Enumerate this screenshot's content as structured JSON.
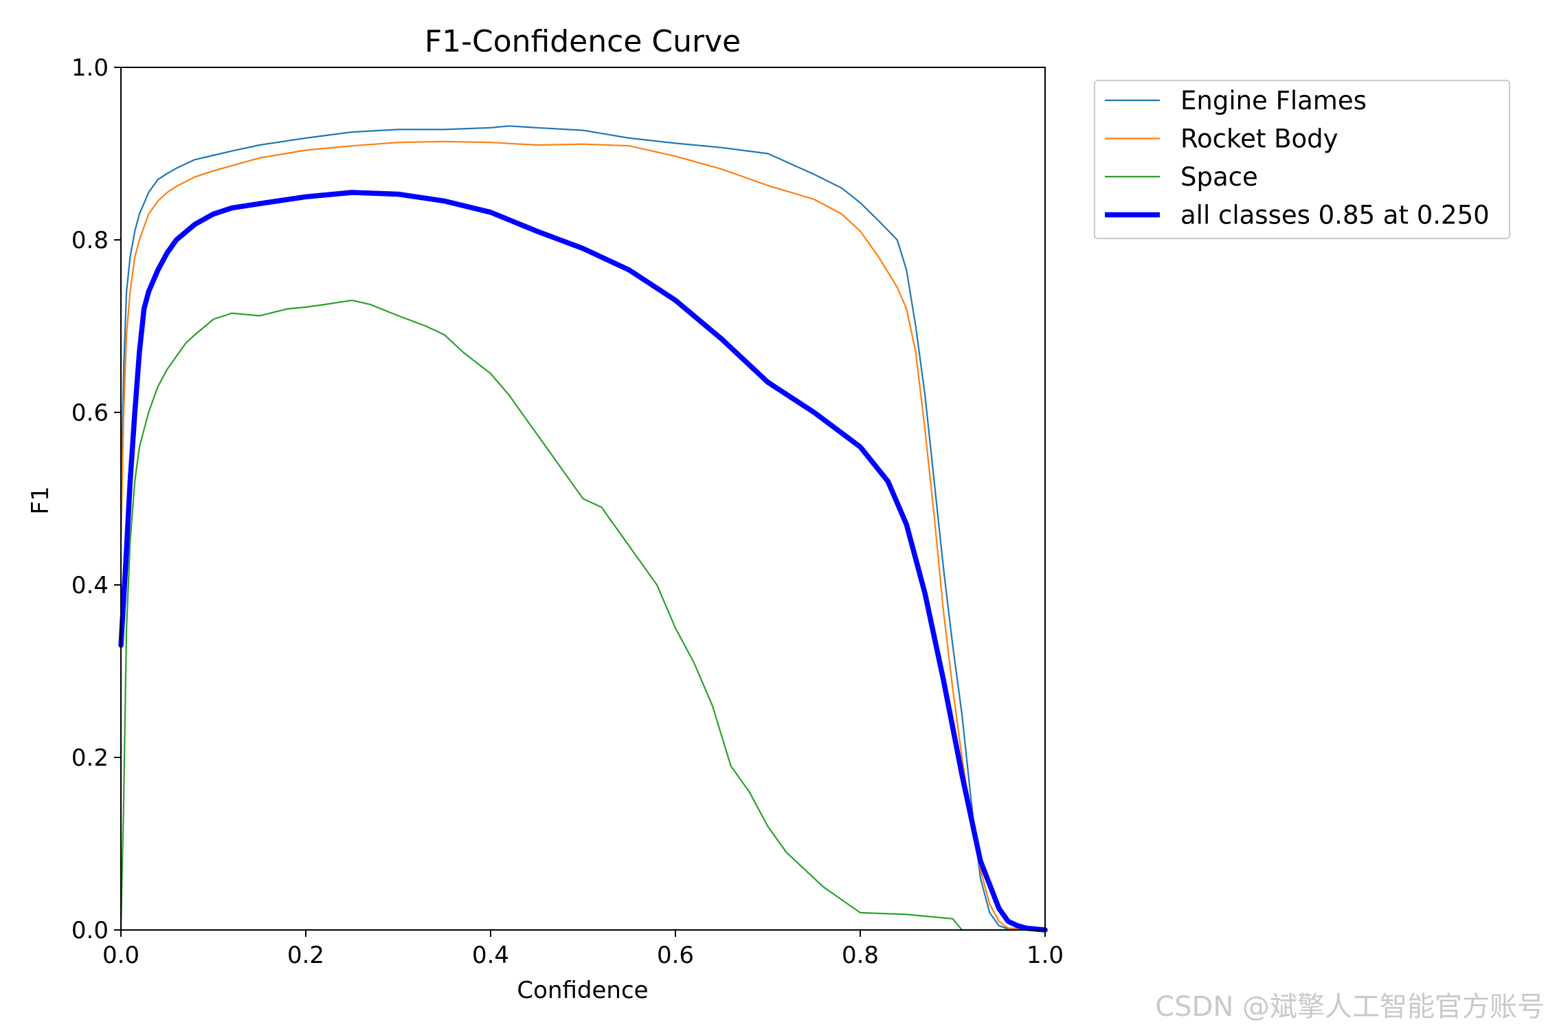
{
  "chart_data": {
    "type": "line",
    "title": "F1-Confidence Curve",
    "xlabel": "Confidence",
    "ylabel": "F1",
    "xlim": [
      0.0,
      1.0
    ],
    "ylim": [
      0.0,
      1.0
    ],
    "xticks": [
      "0.0",
      "0.2",
      "0.4",
      "0.6",
      "0.8",
      "1.0"
    ],
    "yticks": [
      "0.0",
      "0.2",
      "0.4",
      "0.6",
      "0.8",
      "1.0"
    ],
    "grid": false,
    "legend_position": "outside-upper-right",
    "series": [
      {
        "name": "Engine Flames",
        "color": "#1f77b4",
        "x": [
          0.0,
          0.003,
          0.006,
          0.01,
          0.015,
          0.02,
          0.03,
          0.04,
          0.05,
          0.06,
          0.08,
          0.1,
          0.12,
          0.15,
          0.2,
          0.25,
          0.3,
          0.35,
          0.4,
          0.42,
          0.45,
          0.5,
          0.55,
          0.6,
          0.65,
          0.7,
          0.75,
          0.78,
          0.8,
          0.82,
          0.84,
          0.85,
          0.86,
          0.87,
          0.88,
          0.89,
          0.9,
          0.91,
          0.92,
          0.93,
          0.94,
          0.95,
          0.96,
          1.0
        ],
        "y": [
          0.5,
          0.65,
          0.74,
          0.78,
          0.81,
          0.83,
          0.855,
          0.87,
          0.877,
          0.883,
          0.893,
          0.898,
          0.903,
          0.91,
          0.918,
          0.925,
          0.928,
          0.928,
          0.93,
          0.932,
          0.93,
          0.927,
          0.918,
          0.912,
          0.907,
          0.9,
          0.876,
          0.86,
          0.843,
          0.822,
          0.8,
          0.765,
          0.7,
          0.62,
          0.52,
          0.42,
          0.33,
          0.25,
          0.15,
          0.06,
          0.02,
          0.005,
          0.001,
          0.0
        ]
      },
      {
        "name": "Rocket Body",
        "color": "#ff7f0e",
        "x": [
          0.0,
          0.003,
          0.006,
          0.01,
          0.015,
          0.02,
          0.03,
          0.04,
          0.05,
          0.06,
          0.08,
          0.1,
          0.12,
          0.15,
          0.2,
          0.25,
          0.3,
          0.35,
          0.4,
          0.45,
          0.5,
          0.55,
          0.6,
          0.65,
          0.7,
          0.75,
          0.78,
          0.8,
          0.82,
          0.84,
          0.85,
          0.86,
          0.87,
          0.88,
          0.89,
          0.9,
          0.91,
          0.92,
          0.93,
          0.94,
          0.95,
          0.96,
          1.0
        ],
        "y": [
          0.45,
          0.6,
          0.69,
          0.74,
          0.78,
          0.8,
          0.83,
          0.845,
          0.855,
          0.862,
          0.873,
          0.88,
          0.886,
          0.895,
          0.904,
          0.909,
          0.913,
          0.914,
          0.913,
          0.91,
          0.911,
          0.909,
          0.897,
          0.882,
          0.863,
          0.847,
          0.83,
          0.81,
          0.78,
          0.745,
          0.72,
          0.67,
          0.58,
          0.48,
          0.37,
          0.28,
          0.2,
          0.13,
          0.07,
          0.03,
          0.01,
          0.002,
          0.0
        ]
      },
      {
        "name": "Space",
        "color": "#2ca02c",
        "x": [
          0.0,
          0.003,
          0.006,
          0.01,
          0.015,
          0.02,
          0.03,
          0.04,
          0.05,
          0.06,
          0.07,
          0.08,
          0.1,
          0.12,
          0.15,
          0.18,
          0.2,
          0.22,
          0.25,
          0.27,
          0.3,
          0.33,
          0.35,
          0.37,
          0.4,
          0.42,
          0.44,
          0.46,
          0.48,
          0.5,
          0.52,
          0.54,
          0.56,
          0.58,
          0.6,
          0.62,
          0.64,
          0.66,
          0.68,
          0.7,
          0.72,
          0.74,
          0.76,
          0.78,
          0.8,
          0.85,
          0.9,
          0.91,
          0.95,
          1.0
        ],
        "y": [
          0.0,
          0.15,
          0.35,
          0.45,
          0.52,
          0.56,
          0.6,
          0.63,
          0.65,
          0.665,
          0.68,
          0.69,
          0.708,
          0.715,
          0.712,
          0.72,
          0.722,
          0.725,
          0.73,
          0.725,
          0.712,
          0.7,
          0.69,
          0.67,
          0.645,
          0.62,
          0.59,
          0.56,
          0.53,
          0.5,
          0.49,
          0.46,
          0.43,
          0.4,
          0.35,
          0.31,
          0.26,
          0.19,
          0.16,
          0.12,
          0.09,
          0.07,
          0.05,
          0.035,
          0.02,
          0.018,
          0.013,
          0.0,
          0.0,
          0.0
        ]
      },
      {
        "name": "all classes 0.85 at 0.250",
        "color": "#0000ff",
        "x": [
          0.0,
          0.005,
          0.01,
          0.015,
          0.02,
          0.025,
          0.03,
          0.04,
          0.05,
          0.06,
          0.08,
          0.1,
          0.12,
          0.15,
          0.2,
          0.25,
          0.3,
          0.35,
          0.4,
          0.45,
          0.5,
          0.55,
          0.6,
          0.65,
          0.7,
          0.75,
          0.8,
          0.83,
          0.85,
          0.87,
          0.89,
          0.91,
          0.93,
          0.95,
          0.96,
          0.97,
          0.98,
          1.0
        ],
        "y": [
          0.33,
          0.42,
          0.52,
          0.6,
          0.67,
          0.72,
          0.74,
          0.765,
          0.785,
          0.8,
          0.818,
          0.83,
          0.837,
          0.842,
          0.85,
          0.855,
          0.853,
          0.845,
          0.832,
          0.81,
          0.79,
          0.765,
          0.73,
          0.685,
          0.635,
          0.6,
          0.56,
          0.52,
          0.47,
          0.39,
          0.29,
          0.18,
          0.08,
          0.025,
          0.01,
          0.005,
          0.002,
          0.0
        ]
      }
    ]
  },
  "watermark": "CSDN @斌擎人工智能官方账号"
}
